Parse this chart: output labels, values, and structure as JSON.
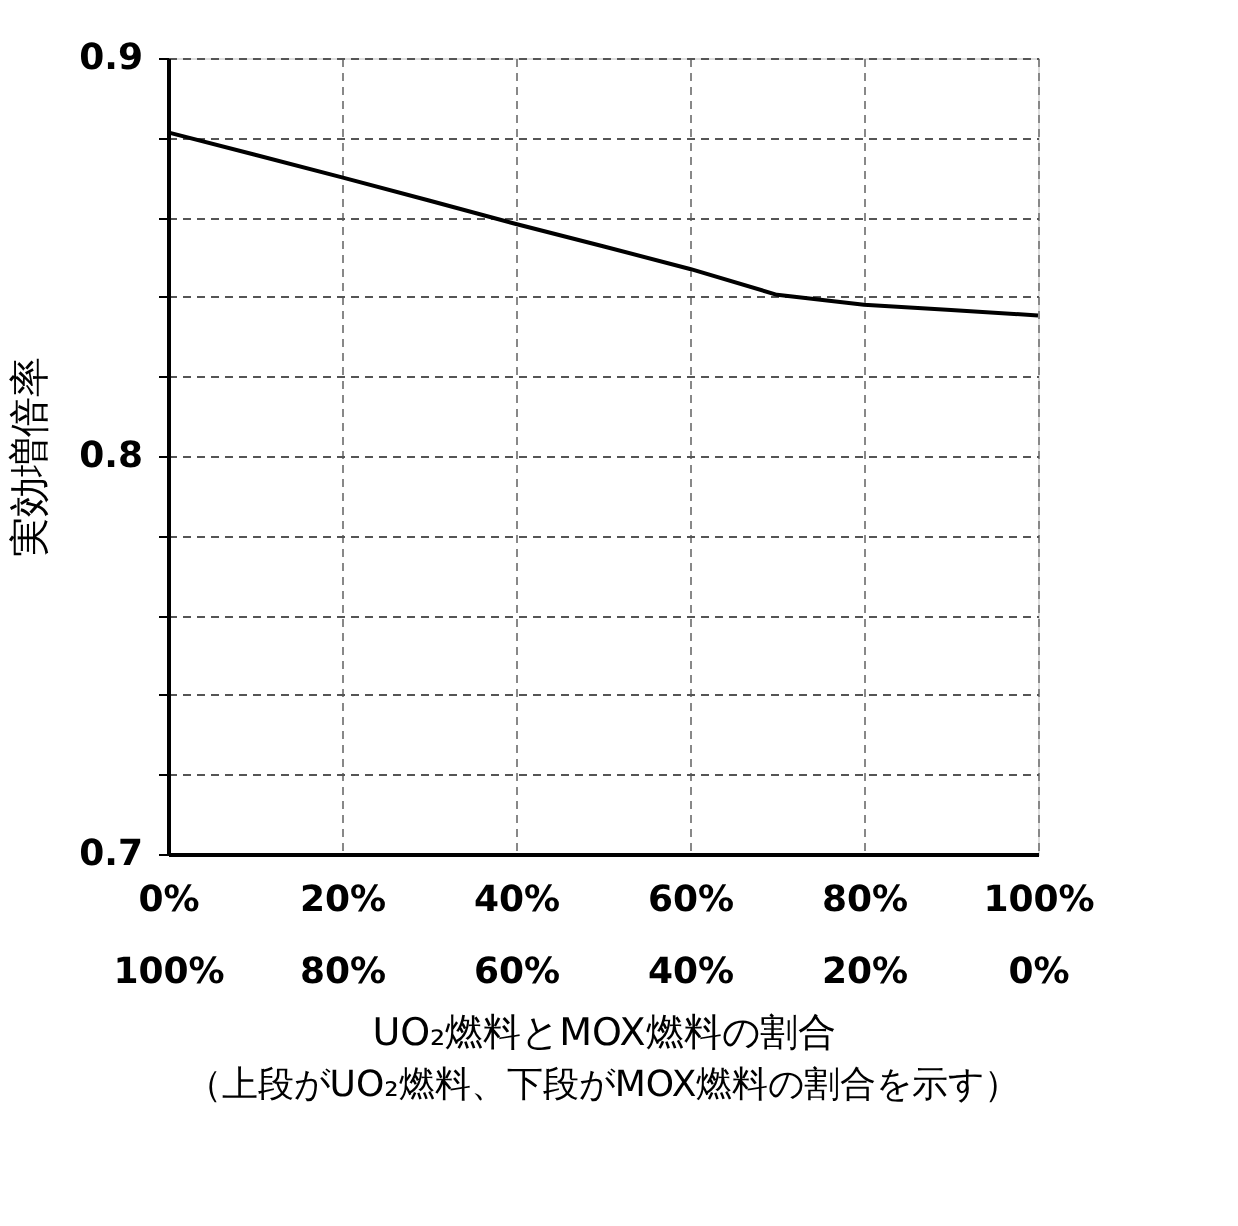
{
  "chart_data": {
    "type": "line",
    "xlabel": "UO₂燃料とMOX燃料の割合",
    "ylabel": "実効増倍率",
    "annotations": [
      "（上段がUO₂燃料、下段がMOX燃料の割合を示す）"
    ],
    "categories": [
      "0%\n100%",
      null,
      "20%\n80%",
      null,
      "40%\n60%",
      null,
      "60%\n40%",
      null,
      "80%\n20%",
      null,
      "100%\n0%"
    ],
    "series": [
      {
        "color": "#000000",
        "values": [
          0.8813,
          0.8757,
          0.87,
          0.8642,
          0.8583,
          0.8527,
          0.847,
          0.8405,
          0.838,
          0.8367,
          0.8353
        ]
      }
    ],
    "ylim": [
      0.7,
      0.9
    ],
    "yticks": [
      0.7,
      {
        "value": 0.72,
        "label": null
      },
      {
        "value": 0.74,
        "label": null
      },
      {
        "value": 0.76,
        "label": null
      },
      {
        "value": 0.78,
        "label": null
      },
      {
        "value": 0.8,
        "label": "0.8"
      },
      {
        "value": 0.82,
        "label": null
      },
      {
        "value": 0.84,
        "label": null
      },
      {
        "value": 0.86,
        "label": null
      },
      {
        "value": 0.88,
        "label": null
      },
      0.9
    ],
    "grid": true,
    "marker": "none",
    "line_style": "solid"
  }
}
